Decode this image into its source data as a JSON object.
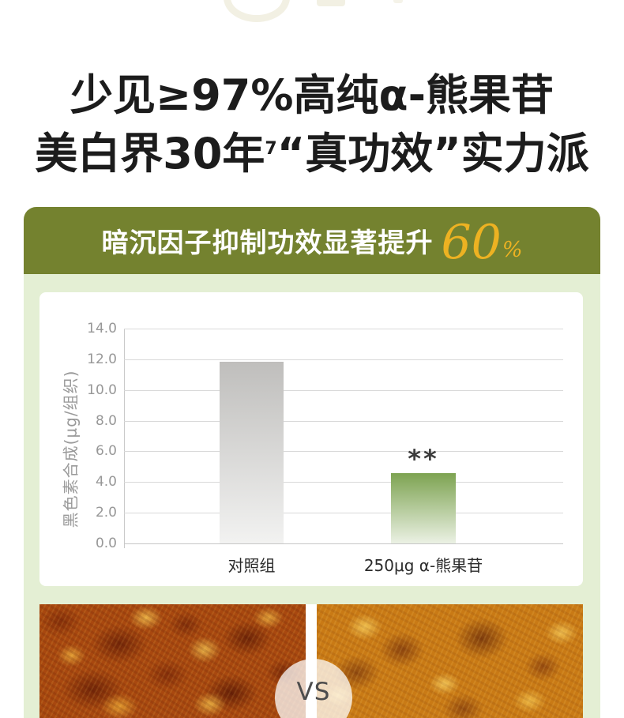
{
  "headline": {
    "line1": "少见≥97%高纯α-熊果苷",
    "line2_prefix": "美白界30年",
    "line2_sup": "7",
    "line2_rest": "“真功效”实力派",
    "color": "#1c1c1c"
  },
  "banner": {
    "text": "暗沉因子抑制功效显著提升",
    "highlight_number": "60",
    "highlight_unit": "%",
    "bg_color": "#74822f",
    "text_color": "#ffffff",
    "highlight_color": "#edb222"
  },
  "panel": {
    "bg_color": "#e4efd4"
  },
  "chart_data": {
    "type": "bar",
    "title": "",
    "categories": [
      "对照组",
      "250μg α-熊果苷"
    ],
    "values": [
      11.85,
      4.6
    ],
    "xlabel": "",
    "ylabel": "黑色素合成(μg/组织)",
    "ylim": [
      0,
      14
    ],
    "ytick_step": 2,
    "yticks": [
      "14.0",
      "12.0",
      "10.0",
      "8.0",
      "6.0",
      "4.0",
      "2.0",
      "0.0"
    ],
    "grid": true,
    "legend": null,
    "annotations": [
      {
        "category": "250μg α-熊果苷",
        "text": "**"
      }
    ],
    "bar_gradients": [
      {
        "top": "#bfbebc",
        "bottom": "#f2f2f1"
      },
      {
        "top": "#7da351",
        "bottom": "#ebf1e4"
      }
    ],
    "tick_color": "#979797",
    "gridline_color": "#d9d9d9"
  },
  "comparison": {
    "vs_label": "VS"
  }
}
